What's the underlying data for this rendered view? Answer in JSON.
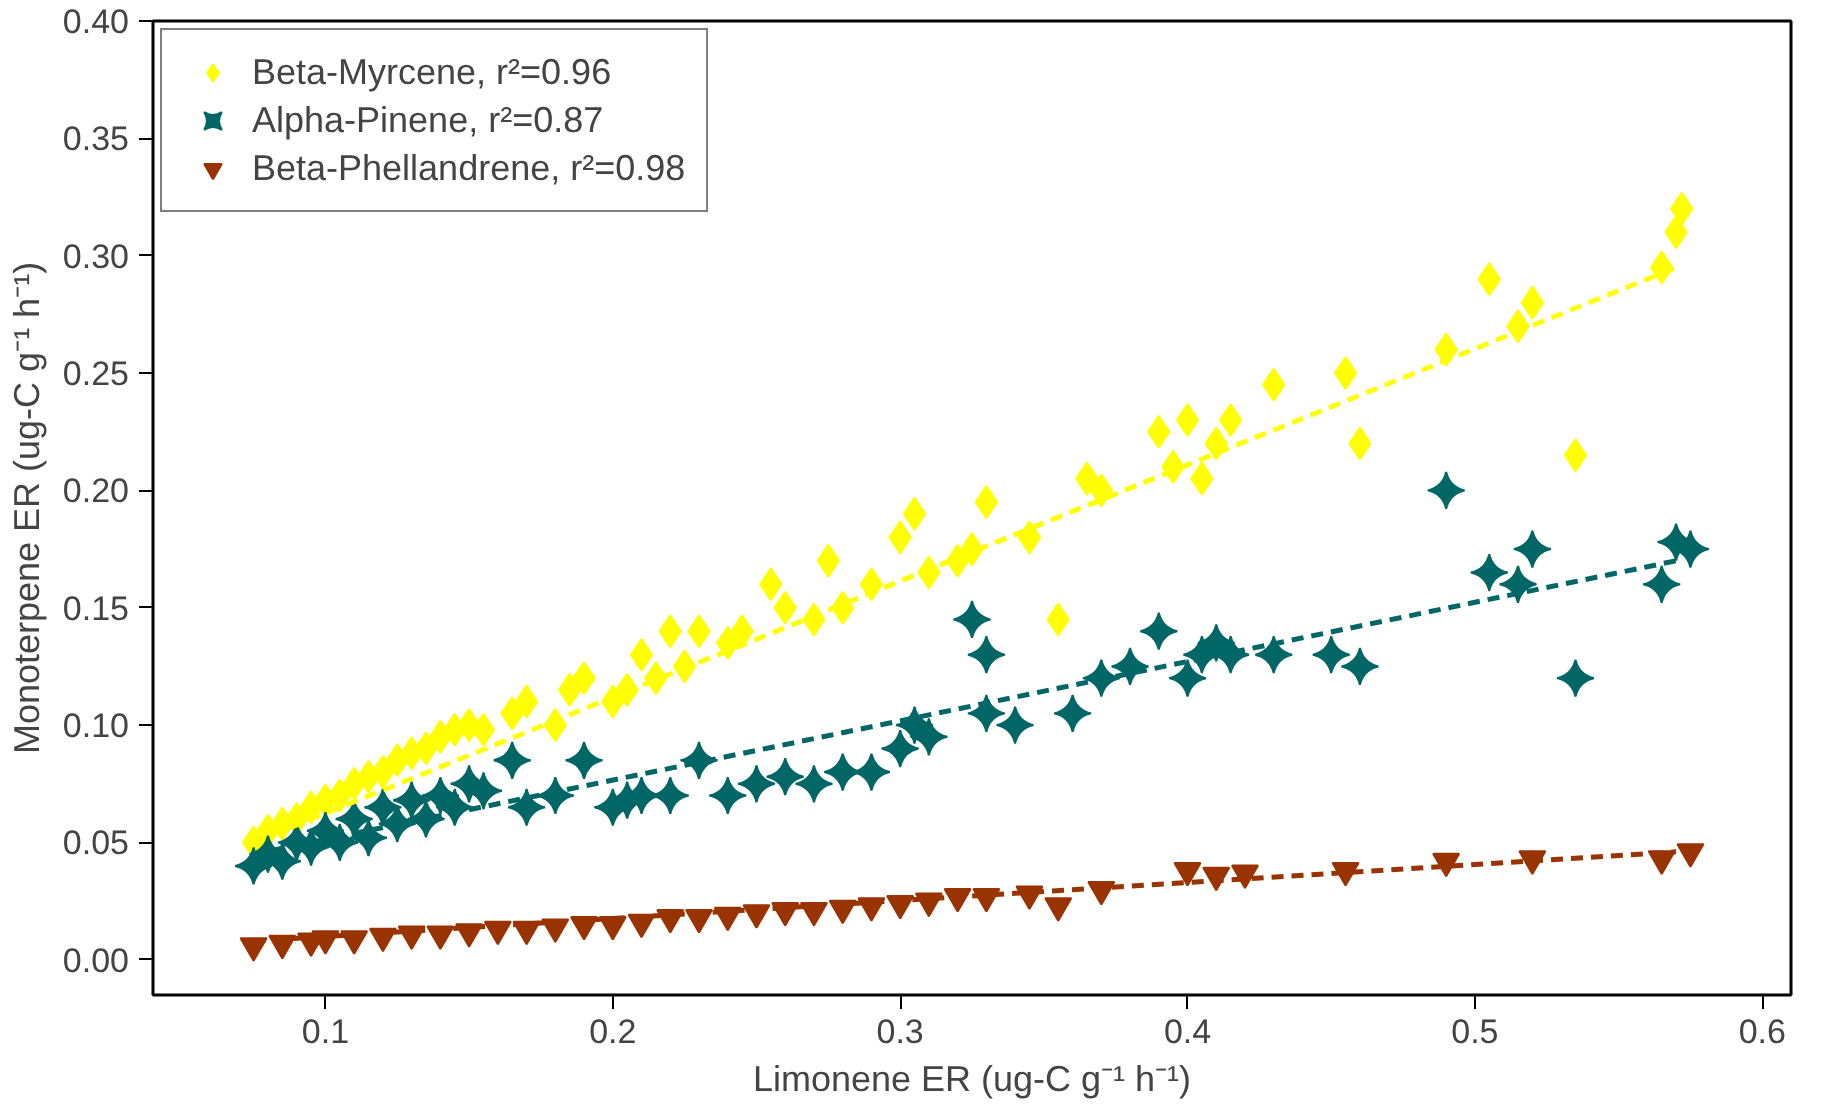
{
  "chart_data": {
    "type": "scatter",
    "xlabel": "Limonene ER (ug-C g⁻¹ h⁻¹)",
    "ylabel": "Monoterpene ER (ug-C g⁻¹ h⁻¹)",
    "xlim": [
      0.04,
      0.61
    ],
    "ylim": [
      -0.015,
      0.4
    ],
    "xticks": [
      {
        "value": 0.1,
        "label": "0.1"
      },
      {
        "value": 0.2,
        "label": "0.2"
      },
      {
        "value": 0.3,
        "label": "0.3"
      },
      {
        "value": 0.4,
        "label": "0.4"
      },
      {
        "value": 0.5,
        "label": "0.5"
      },
      {
        "value": 0.6,
        "label": "0.6"
      }
    ],
    "yticks": [
      {
        "value": 0,
        "label": "0.00"
      },
      {
        "value": 0.05,
        "label": "0.05"
      },
      {
        "value": 0.1,
        "label": "0.10"
      },
      {
        "value": 0.15,
        "label": "0.15"
      },
      {
        "value": 0.2,
        "label": "0.20"
      },
      {
        "value": 0.25,
        "label": "0.25"
      },
      {
        "value": 0.3,
        "label": "0.30"
      },
      {
        "value": 0.35,
        "label": "0.35"
      },
      {
        "value": 0.4,
        "label": "0.40"
      }
    ],
    "grid": false,
    "legend": "top left",
    "series": [
      {
        "name": "Beta-Myrcene, r²=0.96",
        "color": "#ffff00",
        "marker": "diamond",
        "x": [
          0.075,
          0.08,
          0.085,
          0.09,
          0.095,
          0.1,
          0.105,
          0.11,
          0.115,
          0.12,
          0.125,
          0.13,
          0.135,
          0.14,
          0.145,
          0.15,
          0.155,
          0.165,
          0.17,
          0.18,
          0.185,
          0.19,
          0.2,
          0.205,
          0.21,
          0.215,
          0.22,
          0.225,
          0.23,
          0.24,
          0.245,
          0.255,
          0.26,
          0.27,
          0.275,
          0.28,
          0.29,
          0.3,
          0.305,
          0.31,
          0.32,
          0.325,
          0.33,
          0.345,
          0.355,
          0.365,
          0.37,
          0.39,
          0.395,
          0.4,
          0.405,
          0.41,
          0.415,
          0.43,
          0.455,
          0.46,
          0.49,
          0.505,
          0.515,
          0.52,
          0.535,
          0.565,
          0.57,
          0.572
        ],
        "values": [
          0.05,
          0.055,
          0.058,
          0.06,
          0.065,
          0.068,
          0.07,
          0.075,
          0.078,
          0.08,
          0.085,
          0.088,
          0.09,
          0.095,
          0.098,
          0.1,
          0.098,
          0.105,
          0.11,
          0.1,
          0.115,
          0.12,
          0.11,
          0.115,
          0.13,
          0.12,
          0.14,
          0.125,
          0.14,
          0.135,
          0.14,
          0.16,
          0.15,
          0.145,
          0.17,
          0.15,
          0.16,
          0.18,
          0.19,
          0.165,
          0.17,
          0.175,
          0.195,
          0.18,
          0.145,
          0.205,
          0.2,
          0.225,
          0.21,
          0.23,
          0.205,
          0.22,
          0.23,
          0.245,
          0.25,
          0.22,
          0.26,
          0.29,
          0.27,
          0.28,
          0.215,
          0.295,
          0.31,
          0.32
        ]
      },
      {
        "name": "Alpha-Pinene, r²=0.87",
        "color": "#006666",
        "x": [
          0.075,
          0.08,
          0.085,
          0.09,
          0.095,
          0.1,
          0.105,
          0.11,
          0.115,
          0.12,
          0.125,
          0.13,
          0.135,
          0.14,
          0.145,
          0.15,
          0.155,
          0.165,
          0.17,
          0.18,
          0.19,
          0.2,
          0.205,
          0.21,
          0.22,
          0.23,
          0.24,
          0.25,
          0.26,
          0.27,
          0.28,
          0.29,
          0.3,
          0.305,
          0.31,
          0.325,
          0.33,
          0.33,
          0.34,
          0.36,
          0.37,
          0.38,
          0.39,
          0.4,
          0.405,
          0.41,
          0.415,
          0.43,
          0.45,
          0.46,
          0.49,
          0.505,
          0.515,
          0.52,
          0.535,
          0.565,
          0.57,
          0.575
        ],
        "values": [
          0.04,
          0.045,
          0.042,
          0.05,
          0.048,
          0.055,
          0.05,
          0.06,
          0.052,
          0.065,
          0.058,
          0.068,
          0.06,
          0.07,
          0.065,
          0.075,
          0.072,
          0.085,
          0.065,
          0.07,
          0.085,
          0.065,
          0.068,
          0.07,
          0.07,
          0.085,
          0.07,
          0.075,
          0.078,
          0.075,
          0.08,
          0.08,
          0.09,
          0.1,
          0.095,
          0.145,
          0.13,
          0.105,
          0.1,
          0.105,
          0.12,
          0.125,
          0.14,
          0.12,
          0.13,
          0.135,
          0.13,
          0.13,
          0.13,
          0.125,
          0.2,
          0.165,
          0.16,
          0.175,
          0.12,
          0.16,
          0.178,
          0.175
        ]
      },
      {
        "name": "Beta-Phellandrene, r²=0.98",
        "color": "#993300",
        "marker": "triangle_down",
        "x": [
          0.075,
          0.085,
          0.095,
          0.1,
          0.11,
          0.12,
          0.13,
          0.14,
          0.15,
          0.16,
          0.17,
          0.18,
          0.19,
          0.2,
          0.21,
          0.22,
          0.23,
          0.24,
          0.25,
          0.26,
          0.27,
          0.28,
          0.29,
          0.3,
          0.31,
          0.32,
          0.33,
          0.345,
          0.355,
          0.37,
          0.4,
          0.41,
          0.42,
          0.455,
          0.49,
          0.52,
          0.565,
          0.575
        ],
        "values": [
          0.006,
          0.007,
          0.008,
          0.009,
          0.009,
          0.01,
          0.011,
          0.011,
          0.012,
          0.013,
          0.013,
          0.014,
          0.015,
          0.015,
          0.016,
          0.018,
          0.018,
          0.019,
          0.02,
          0.021,
          0.021,
          0.022,
          0.023,
          0.024,
          0.025,
          0.027,
          0.027,
          0.028,
          0.023,
          0.03,
          0.038,
          0.036,
          0.037,
          0.038,
          0.042,
          0.043,
          0.043,
          0.046
        ]
      },
      {
        "type": "line",
        "color": "#ffff00",
        "line_style": "dashed",
        "x": [
          0.075,
          0.57
        ],
        "values": [
          0.05,
          0.295
        ]
      },
      {
        "type": "line",
        "color": "#006666",
        "line_style": "dashed",
        "x": [
          0.075,
          0.57
        ],
        "values": [
          0.045,
          0.17
        ]
      },
      {
        "type": "line",
        "color": "#993300",
        "line_style": "dashed",
        "x": [
          0.075,
          0.57
        ],
        "values": [
          0.008,
          0.046
        ]
      }
    ]
  }
}
